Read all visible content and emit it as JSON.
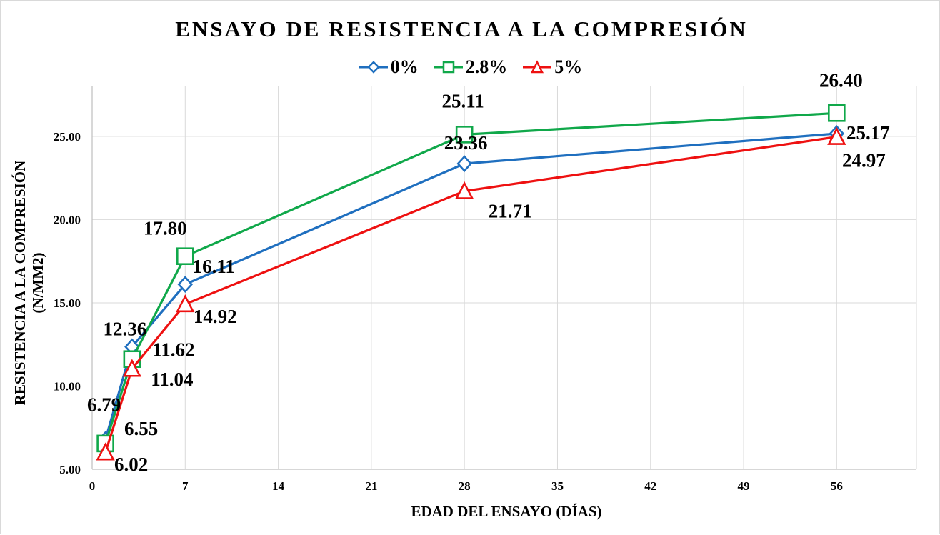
{
  "chart_data": {
    "type": "line",
    "title": "ENSAYO  DE RESISTENCIA A LA COMPRESIÓN",
    "xlabel": "EDAD DEL ENSAYO (DÍAS)",
    "ylabel": "RESISTENCIA A LA COMPRESIÓN (N/MM2)",
    "xlim": [
      0,
      62
    ],
    "ylim": [
      5,
      28
    ],
    "x_ticks": [
      0,
      7,
      14,
      21,
      28,
      35,
      42,
      49,
      56
    ],
    "x_tick_labels": [
      "0",
      "7",
      "14",
      "21",
      "28",
      "35",
      "42",
      "49",
      "56"
    ],
    "y_ticks": [
      5,
      10,
      15,
      20,
      25
    ],
    "y_tick_labels": [
      "5.00",
      "10.00",
      "15.00",
      "20.00",
      "25.00"
    ],
    "grid": true,
    "legend_position": "top-center",
    "x": [
      1,
      3,
      7,
      28,
      56
    ],
    "series": [
      {
        "name": "0%",
        "color": "#1f6fbf",
        "marker": "diamond",
        "values": [
          6.79,
          12.36,
          16.11,
          23.36,
          25.17
        ],
        "labels": [
          "6.79",
          "12.36",
          "16.11",
          "23.36",
          "25.17"
        ]
      },
      {
        "name": "2.8%",
        "color": "#10a84a",
        "marker": "square",
        "values": [
          6.55,
          11.62,
          17.8,
          25.11,
          26.4
        ],
        "labels": [
          "6.55",
          "11.62",
          "17.80",
          "25.11",
          "26.40"
        ]
      },
      {
        "name": "5%",
        "color": "#ee1111",
        "marker": "triangle",
        "values": [
          6.02,
          11.04,
          14.92,
          21.71,
          24.97
        ],
        "labels": [
          "6.02",
          "11.04",
          "14.92",
          "21.71",
          "24.97"
        ]
      }
    ]
  }
}
